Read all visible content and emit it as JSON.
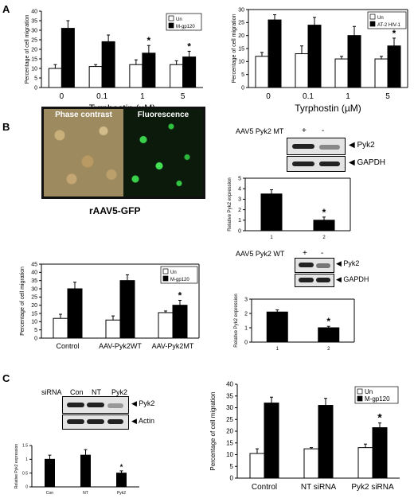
{
  "panels": {
    "A": "A",
    "B": "B",
    "C": "C"
  },
  "microscopy": {
    "phase_label": "Phase contrast",
    "fluor_label": "Fluorescence",
    "caption": "rAAV5-GFP"
  },
  "blot_b1": {
    "row_label": "AAV5 Pyk2 MT",
    "lane_plus": "+",
    "lane_minus": "-",
    "bands": [
      "Pyk2",
      "GAPDH"
    ]
  },
  "blot_b2": {
    "row_label": "AAV5 Pyk2 WT",
    "lane_plus": "+",
    "lane_minus": "-",
    "bands": [
      "Pyk2",
      "GAPDH"
    ]
  },
  "blot_c": {
    "row_label": "siRNA",
    "lanes": [
      "Con",
      "NT",
      "Pyk2"
    ],
    "bands": [
      "Pyk2",
      "Actin"
    ]
  },
  "chart_data": [
    {
      "type": "bar",
      "id": "A-left",
      "categories": [
        "0",
        "0.1",
        "1",
        "5"
      ],
      "series": [
        {
          "name": "Un",
          "values": [
            10,
            11,
            12,
            12
          ],
          "errors": [
            2,
            1,
            2.5,
            2
          ]
        },
        {
          "name": "M-gp120",
          "values": [
            31,
            24,
            18,
            16
          ],
          "errors": [
            4,
            3.5,
            4,
            3
          ]
        }
      ],
      "significance": [
        "",
        "",
        "*",
        "*"
      ],
      "xlabel": "Tyrphostin (µM)",
      "ylabel": "Percentage of cell migration",
      "ylim": [
        0,
        40
      ],
      "yticks": [
        "0",
        "5",
        "10",
        "15",
        "20",
        "25",
        "30",
        "35",
        "40"
      ],
      "legend_position": "top-right"
    },
    {
      "type": "bar",
      "id": "A-right",
      "categories": [
        "0",
        "0.1",
        "1",
        "5"
      ],
      "series": [
        {
          "name": "Un",
          "values": [
            12,
            13,
            11,
            11
          ],
          "errors": [
            1.5,
            3,
            1,
            1
          ]
        },
        {
          "name": "AT-2 HIV-1",
          "values": [
            26,
            24,
            20,
            16
          ],
          "errors": [
            2,
            3,
            3.5,
            3
          ]
        }
      ],
      "significance": [
        "",
        "",
        "",
        "*"
      ],
      "xlabel": "Tyrphostin (µM)",
      "ylabel": "Percentage of cell migration",
      "ylim": [
        0,
        30
      ],
      "yticks": [
        "0",
        "5",
        "10",
        "15",
        "20",
        "25",
        "30"
      ],
      "legend_position": "top-right"
    },
    {
      "type": "bar",
      "id": "B-expr-MT",
      "categories": [
        "1",
        "2"
      ],
      "series": [
        {
          "name": "",
          "values": [
            3.5,
            1.0
          ],
          "errors": [
            0.4,
            0.3
          ]
        }
      ],
      "significance": [
        "",
        "*"
      ],
      "xlabel": "",
      "ylabel": "Relative Pyk2 expression",
      "ylim": [
        0,
        5
      ],
      "yticks": [
        "0",
        "1",
        "2",
        "3",
        "4",
        "5"
      ]
    },
    {
      "type": "bar",
      "id": "B-migration",
      "categories": [
        "Control",
        "AAV-Pyk2WT",
        "AAV-Pyk2MT"
      ],
      "series": [
        {
          "name": "Un",
          "values": [
            12,
            11,
            15.5
          ],
          "errors": [
            2.5,
            2.5,
            1
          ]
        },
        {
          "name": "M-gp120",
          "values": [
            30,
            35,
            20
          ],
          "errors": [
            4,
            3.5,
            3
          ]
        }
      ],
      "significance": [
        "",
        "",
        "*"
      ],
      "xlabel": "",
      "ylabel": "Percentage of cell migration",
      "ylim": [
        0,
        45
      ],
      "yticks": [
        "0",
        "5",
        "10",
        "15",
        "20",
        "25",
        "30",
        "35",
        "40",
        "45"
      ],
      "legend_position": "top-right"
    },
    {
      "type": "bar",
      "id": "B-expr-WT",
      "categories": [
        "1",
        "2"
      ],
      "series": [
        {
          "name": "",
          "values": [
            2.1,
            1.0
          ],
          "errors": [
            0.15,
            0.1
          ]
        }
      ],
      "significance": [
        "",
        "*"
      ],
      "xlabel": "",
      "ylabel": "Relative Pyk2 expression",
      "ylim": [
        0,
        3
      ],
      "yticks": [
        "0",
        "1",
        "2",
        "3"
      ]
    },
    {
      "type": "bar",
      "id": "C-expr",
      "categories": [
        "Con",
        "NT",
        "Pyk2"
      ],
      "series": [
        {
          "name": "",
          "values": [
            1.0,
            1.15,
            0.5
          ],
          "errors": [
            0.15,
            0.2,
            0.08
          ]
        }
      ],
      "significance": [
        "",
        "",
        "*"
      ],
      "xlabel": "",
      "ylabel": "Relative Pyk2 expression",
      "ylim": [
        0,
        1.5
      ],
      "yticks": [
        "0",
        "0.5",
        "1",
        "1.5"
      ]
    },
    {
      "type": "bar",
      "id": "C-migration",
      "categories": [
        "Control",
        "NT siRNA",
        "Pyk2 siRNA"
      ],
      "series": [
        {
          "name": "Un",
          "values": [
            10.5,
            12.5,
            13
          ],
          "errors": [
            2,
            0.5,
            1.5
          ]
        },
        {
          "name": "M-gp120",
          "values": [
            32,
            31,
            21.5
          ],
          "errors": [
            2.5,
            3,
            2
          ]
        }
      ],
      "significance": [
        "",
        "",
        "*"
      ],
      "xlabel": "",
      "ylabel": "Percentage of cell migration",
      "ylim": [
        0,
        40
      ],
      "yticks": [
        "0",
        "5",
        "10",
        "15",
        "20",
        "25",
        "30",
        "35",
        "40"
      ],
      "legend_position": "top-right"
    }
  ]
}
